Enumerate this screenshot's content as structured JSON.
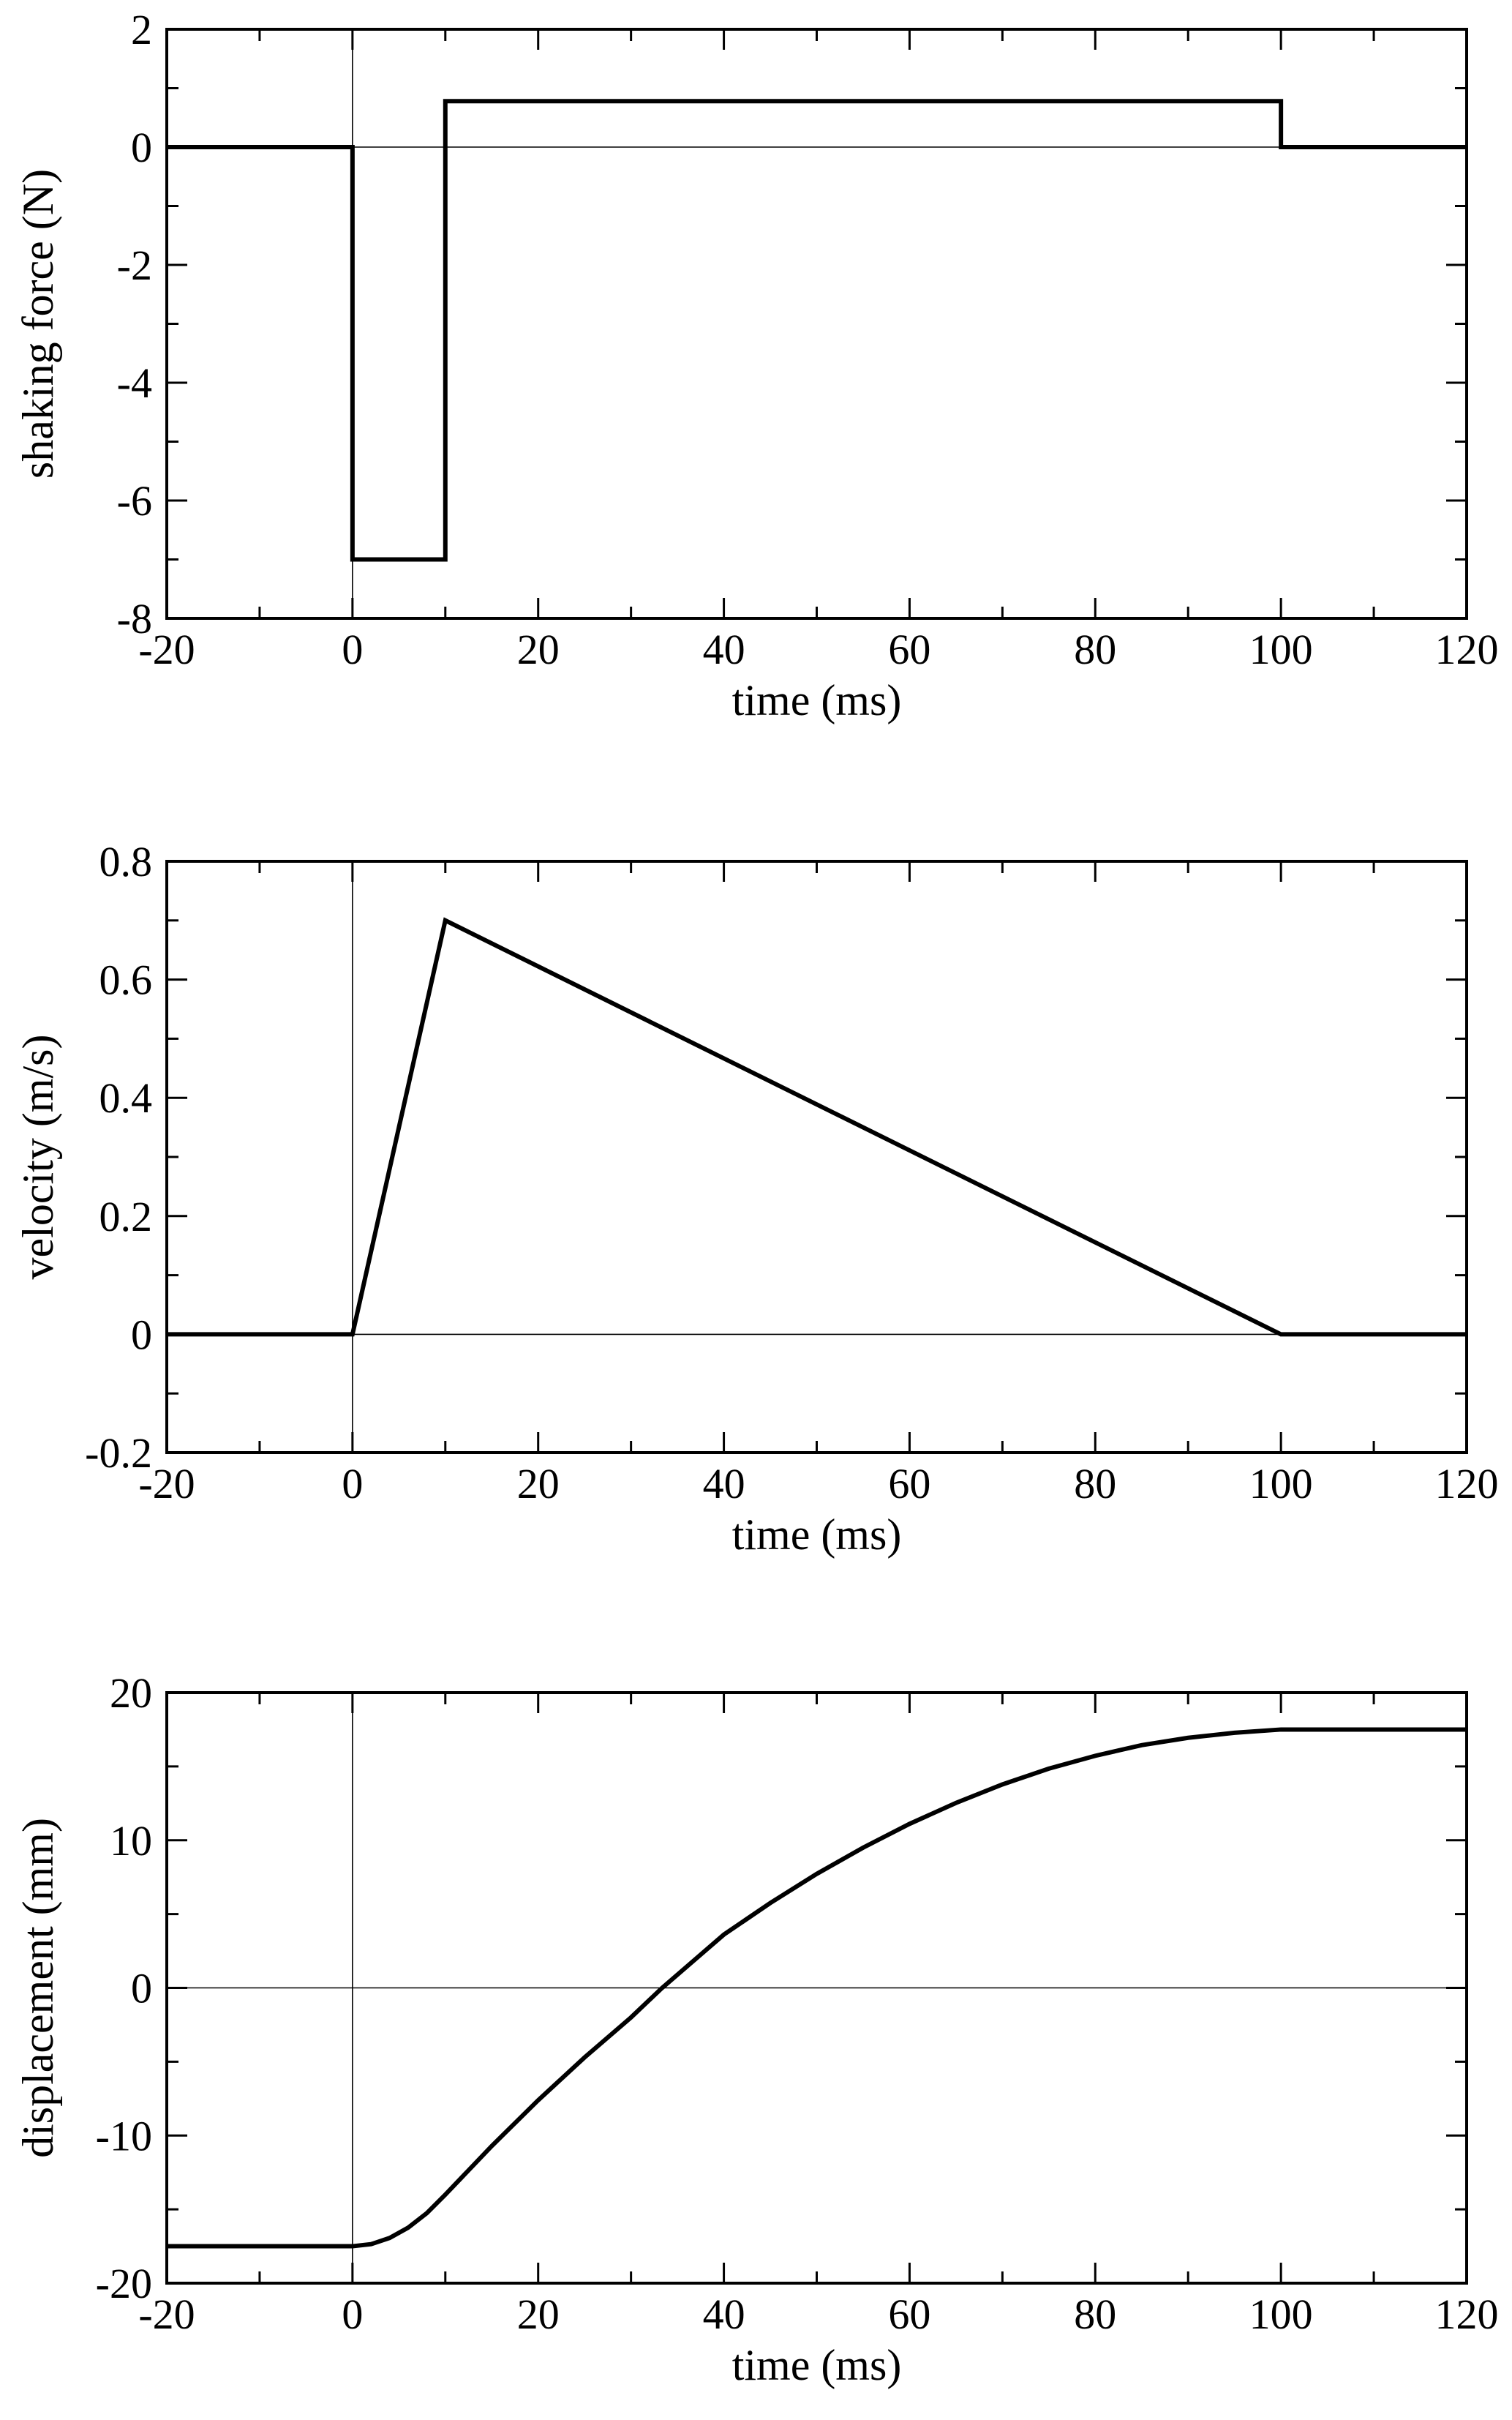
{
  "chart_data": [
    {
      "type": "line",
      "xlabel": "time (ms)",
      "ylabel": "shaking force (N)",
      "xlim": [
        -20,
        120
      ],
      "ylim": [
        -8,
        2
      ],
      "xticks": [
        -20,
        0,
        20,
        40,
        60,
        80,
        100,
        120
      ],
      "xtick_labels": [
        "-20",
        "0",
        "20",
        "40",
        "60",
        "80",
        "100",
        "120"
      ],
      "yticks": [
        -8,
        -6,
        -4,
        -2,
        0,
        2
      ],
      "ytick_labels": [
        "-8",
        "-6",
        "-4",
        "-2",
        "0",
        "2"
      ],
      "x_minor_step": 10,
      "y_minor_step": 1,
      "zero_lines": {
        "x": 0,
        "y": 0
      },
      "grid": false,
      "series": [
        {
          "x": [
            -20,
            0,
            0,
            10,
            10,
            100,
            100,
            120
          ],
          "y": [
            0,
            0,
            -7,
            -7,
            0.78,
            0.78,
            0,
            0
          ]
        }
      ]
    },
    {
      "type": "line",
      "xlabel": "time (ms)",
      "ylabel": "velocity (m/s)",
      "xlim": [
        -20,
        120
      ],
      "ylim": [
        -0.2,
        0.8
      ],
      "xticks": [
        -20,
        0,
        20,
        40,
        60,
        80,
        100,
        120
      ],
      "xtick_labels": [
        "-20",
        "0",
        "20",
        "40",
        "60",
        "80",
        "100",
        "120"
      ],
      "yticks": [
        -0.2,
        0,
        0.2,
        0.4,
        0.6,
        0.8
      ],
      "ytick_labels": [
        "-0.2",
        "0",
        "0.2",
        "0.4",
        "0.6",
        "0.8"
      ],
      "x_minor_step": 10,
      "y_minor_step": 0.1,
      "zero_lines": {
        "x": 0,
        "y": 0
      },
      "grid": false,
      "series": [
        {
          "x": [
            -20,
            0,
            10,
            100,
            120
          ],
          "y": [
            0,
            0,
            0.7,
            0,
            0
          ]
        }
      ]
    },
    {
      "type": "line",
      "xlabel": "time (ms)",
      "ylabel": "displacement (mm)",
      "xlim": [
        -20,
        120
      ],
      "ylim": [
        -20,
        20
      ],
      "xticks": [
        -20,
        0,
        20,
        40,
        60,
        80,
        100,
        120
      ],
      "xtick_labels": [
        "-20",
        "0",
        "20",
        "40",
        "60",
        "80",
        "100",
        "120"
      ],
      "yticks": [
        -20,
        -10,
        0,
        10,
        20
      ],
      "ytick_labels": [
        "-20",
        "-10",
        "0",
        "10",
        "20"
      ],
      "x_minor_step": 10,
      "y_minor_step": 5,
      "zero_lines": {
        "x": 0,
        "y": 0
      },
      "grid": false,
      "series": [
        {
          "x": [
            -20,
            0,
            2,
            4,
            6,
            8,
            10,
            15,
            20,
            25,
            30,
            33.3,
            40,
            45,
            50,
            55,
            60,
            65,
            70,
            75,
            80,
            85,
            90,
            95,
            100,
            120
          ],
          "y": [
            -17.5,
            -17.5,
            -17.36,
            -16.94,
            -16.24,
            -15.26,
            -14.0,
            -10.71,
            -7.61,
            -4.71,
            -2.0,
            -0.03,
            3.61,
            5.75,
            7.72,
            9.5,
            11.11,
            12.53,
            13.78,
            14.85,
            15.72,
            16.44,
            16.94,
            17.28,
            17.5,
            17.5
          ]
        }
      ]
    }
  ]
}
